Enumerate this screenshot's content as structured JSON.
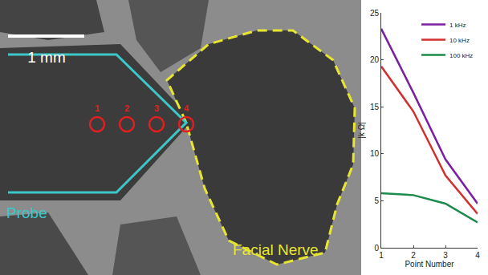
{
  "chart_data": {
    "type": "line",
    "x": [
      1,
      2,
      3,
      4
    ],
    "x_label": "Point Number",
    "y_label": "|k Ω|",
    "series": [
      {
        "name": "1 kHz",
        "color": "#7b1fa2",
        "values": [
          23.3,
          16.5,
          9.4,
          4.7
        ]
      },
      {
        "name": "10 kHz",
        "color": "#d32f2f",
        "values": [
          19.3,
          14.5,
          7.7,
          3.6
        ]
      },
      {
        "name": "100 kHz",
        "color": "#1b8a4a",
        "values": [
          5.8,
          5.6,
          4.7,
          2.7
        ]
      }
    ],
    "xlim": [
      1,
      4
    ],
    "xticks": [
      1,
      2,
      3,
      4
    ],
    "ylim": [
      0,
      25
    ],
    "yticks": [
      0,
      5,
      10,
      15,
      20,
      25
    ],
    "grid": false,
    "legend": "upper right"
  },
  "image_panel": {
    "scale_bar": "1 mm",
    "points": [
      "1",
      "2",
      "3",
      "4"
    ],
    "probe_label": "Probe",
    "nerve_label": "Facial Nerve"
  }
}
